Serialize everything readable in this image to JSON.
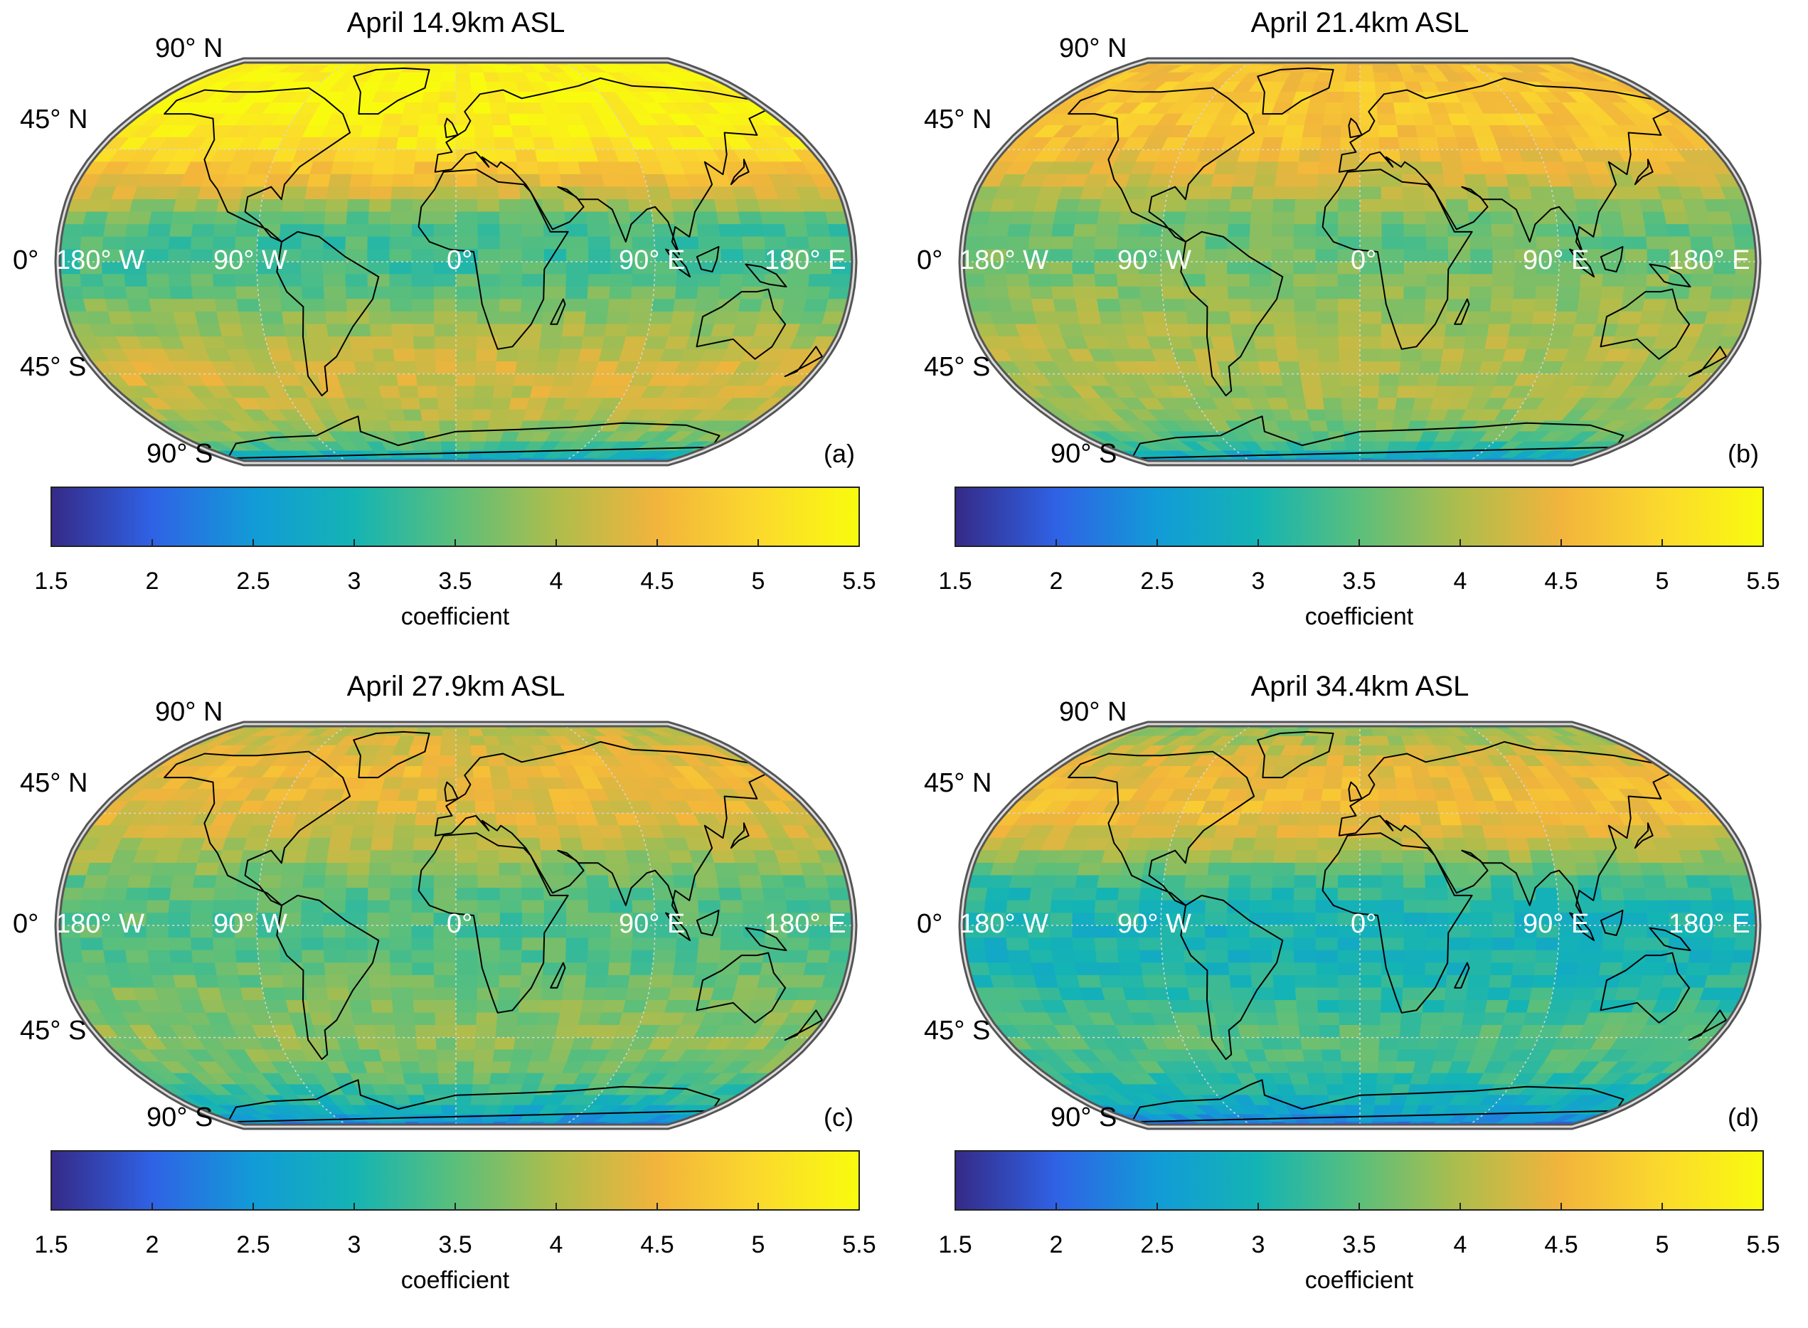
{
  "colorbar": {
    "ticks": [
      "1.5",
      "2",
      "2.5",
      "3",
      "3.5",
      "4",
      "4.5",
      "5",
      "5.5"
    ],
    "label": "coefficient",
    "range": [
      1.5,
      5.5
    ],
    "colormap": "parula",
    "stops": [
      "#352a87",
      "#2f62e5",
      "#129bd7",
      "#14b4b4",
      "#5bbf7b",
      "#aebd4c",
      "#f2b43c",
      "#fbd92d",
      "#f9fb0e"
    ]
  },
  "latitude_labels": [
    {
      "deg": "90",
      "dir": "N"
    },
    {
      "deg": "45",
      "dir": "N"
    },
    {
      "deg": "0",
      "dir": ""
    },
    {
      "deg": "45",
      "dir": "S"
    },
    {
      "deg": "90",
      "dir": "S"
    }
  ],
  "longitude_labels": [
    {
      "deg": "180",
      "dir": "W"
    },
    {
      "deg": "90",
      "dir": "W"
    },
    {
      "deg": "0",
      "dir": ""
    },
    {
      "deg": "90",
      "dir": "E"
    },
    {
      "deg": "180",
      "dir": "E"
    }
  ],
  "degree_symbol": "°",
  "projection": "Robinson",
  "panels": [
    {
      "id": "a",
      "title": "April 14.9km ASL",
      "letter": "(a)",
      "bands": [
        {
          "lat": 90,
          "value": 5.3
        },
        {
          "lat": 75,
          "value": 5.4
        },
        {
          "lat": 60,
          "value": 5.4
        },
        {
          "lat": 45,
          "value": 5.1
        },
        {
          "lat": 30,
          "value": 4.4
        },
        {
          "lat": 15,
          "value": 3.4
        },
        {
          "lat": 0,
          "value": 3.3
        },
        {
          "lat": -15,
          "value": 3.6
        },
        {
          "lat": -30,
          "value": 4.0
        },
        {
          "lat": -45,
          "value": 4.3
        },
        {
          "lat": -60,
          "value": 4.1
        },
        {
          "lat": -75,
          "value": 3.6
        },
        {
          "lat": -90,
          "value": 2.4
        }
      ]
    },
    {
      "id": "b",
      "title": "April 21.4km ASL",
      "letter": "(b)",
      "bands": [
        {
          "lat": 90,
          "value": 4.6
        },
        {
          "lat": 75,
          "value": 4.7
        },
        {
          "lat": 60,
          "value": 4.8
        },
        {
          "lat": 45,
          "value": 4.6
        },
        {
          "lat": 30,
          "value": 4.1
        },
        {
          "lat": 15,
          "value": 3.6
        },
        {
          "lat": 0,
          "value": 3.6
        },
        {
          "lat": -15,
          "value": 3.8
        },
        {
          "lat": -30,
          "value": 4.0
        },
        {
          "lat": -45,
          "value": 4.0
        },
        {
          "lat": -60,
          "value": 3.9
        },
        {
          "lat": -75,
          "value": 3.4
        },
        {
          "lat": -90,
          "value": 2.4
        }
      ]
    },
    {
      "id": "c",
      "title": "April 27.9km ASL",
      "letter": "(c)",
      "bands": [
        {
          "lat": 90,
          "value": 4.0
        },
        {
          "lat": 75,
          "value": 4.3
        },
        {
          "lat": 60,
          "value": 4.5
        },
        {
          "lat": 45,
          "value": 4.4
        },
        {
          "lat": 30,
          "value": 4.0
        },
        {
          "lat": 15,
          "value": 3.5
        },
        {
          "lat": 0,
          "value": 3.4
        },
        {
          "lat": -15,
          "value": 3.5
        },
        {
          "lat": -30,
          "value": 3.7
        },
        {
          "lat": -45,
          "value": 3.8
        },
        {
          "lat": -60,
          "value": 3.6
        },
        {
          "lat": -75,
          "value": 3.0
        },
        {
          "lat": -90,
          "value": 2.2
        }
      ]
    },
    {
      "id": "d",
      "title": "April 34.4km ASL",
      "letter": "(d)",
      "bands": [
        {
          "lat": 90,
          "value": 3.6
        },
        {
          "lat": 75,
          "value": 4.1
        },
        {
          "lat": 60,
          "value": 4.5
        },
        {
          "lat": 45,
          "value": 4.6
        },
        {
          "lat": 30,
          "value": 4.0
        },
        {
          "lat": 15,
          "value": 3.2
        },
        {
          "lat": 0,
          "value": 3.0
        },
        {
          "lat": -15,
          "value": 3.0
        },
        {
          "lat": -30,
          "value": 3.2
        },
        {
          "lat": -45,
          "value": 3.5
        },
        {
          "lat": -60,
          "value": 3.3
        },
        {
          "lat": -75,
          "value": 2.8
        },
        {
          "lat": -90,
          "value": 2.1
        }
      ]
    }
  ]
}
